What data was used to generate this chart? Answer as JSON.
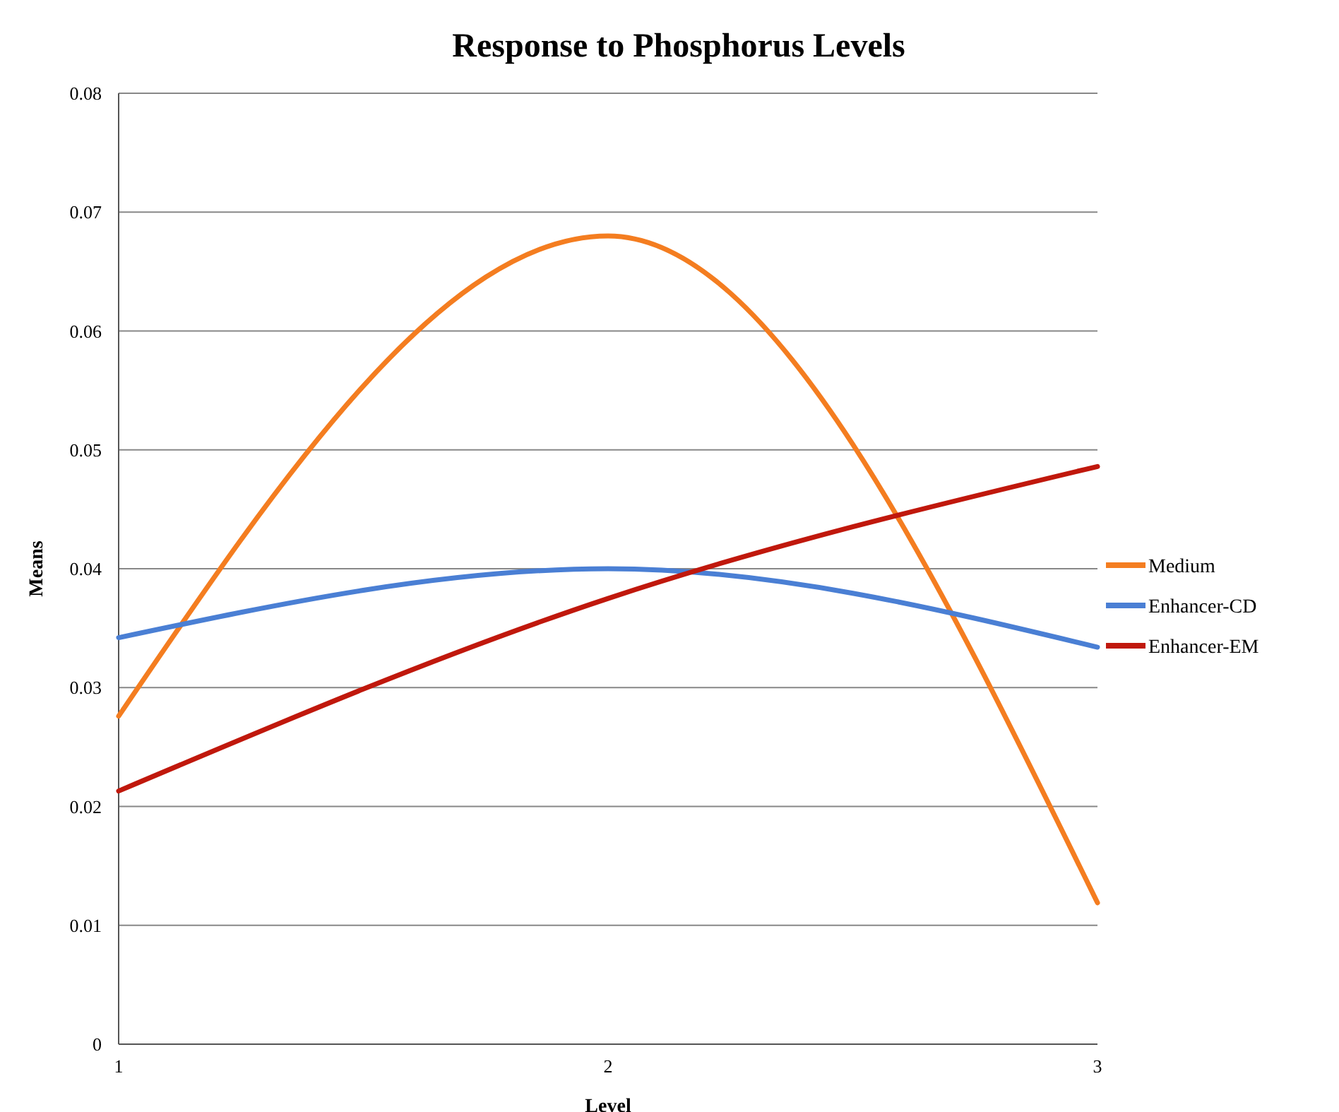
{
  "chart_data": {
    "type": "line",
    "title": "Response to Phosphorus Levels",
    "xlabel": "Level",
    "ylabel": "Means",
    "x": [
      1,
      2,
      3
    ],
    "xlim": [
      1,
      3
    ],
    "xticks": [
      1,
      2,
      3
    ],
    "ylim": [
      0,
      0.08
    ],
    "yticks": [
      0,
      0.01,
      0.02,
      0.03,
      0.04,
      0.05,
      0.06,
      0.07,
      0.08
    ],
    "grid": "y",
    "legend": "right",
    "marker": "none",
    "line_style": "solid",
    "series": [
      {
        "name": "Medium",
        "color": "#f47d20",
        "values": [
          0.0276,
          0.068,
          0.0119
        ]
      },
      {
        "name": "Enhancer-CD",
        "color": "#4a7fd4",
        "values": [
          0.0342,
          0.04,
          0.0334
        ]
      },
      {
        "name": "Enhancer-EM",
        "color": "#c0180c",
        "values": [
          0.0213,
          0.0375,
          0.0486
        ]
      }
    ]
  }
}
